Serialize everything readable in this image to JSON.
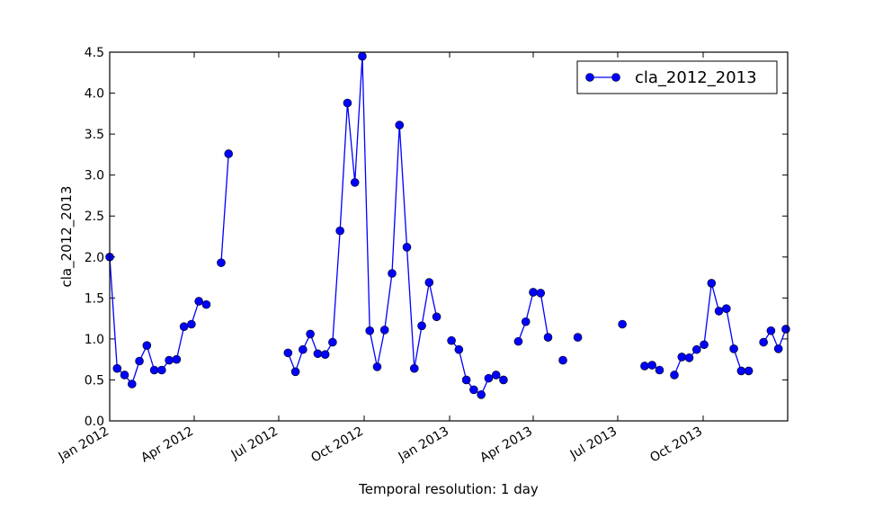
{
  "chart_data": {
    "type": "line",
    "title": "",
    "xlabel": "Temporal resolution: 1 day",
    "ylabel": "cla_2012_2013",
    "ylim": [
      0.0,
      4.5
    ],
    "xlim": [
      "2012-01-01",
      "2013-12-31"
    ],
    "grid": false,
    "legend_position": "top-right",
    "y_ticks": [
      "0.0",
      "0.5",
      "1.0",
      "1.5",
      "2.0",
      "2.5",
      "3.0",
      "3.5",
      "4.0",
      "4.5"
    ],
    "x_ticks": [
      {
        "date": "2012-01-01",
        "label": "Jan 2012"
      },
      {
        "date": "2012-04-01",
        "label": "Apr 2012"
      },
      {
        "date": "2012-07-01",
        "label": "Jul 2012"
      },
      {
        "date": "2012-10-01",
        "label": "Oct 2012"
      },
      {
        "date": "2013-01-01",
        "label": "Jan 2013"
      },
      {
        "date": "2013-04-01",
        "label": "Apr 2013"
      },
      {
        "date": "2013-07-01",
        "label": "Jul 2013"
      },
      {
        "date": "2013-10-01",
        "label": "Oct 2013"
      }
    ],
    "series_color": "#0000ff",
    "series": [
      {
        "name": "cla_2012_2013",
        "points": [
          [
            "2012-01-01",
            2.0
          ],
          [
            "2012-01-09",
            0.64
          ],
          [
            "2012-01-17",
            0.56
          ],
          [
            "2012-01-25",
            0.45
          ],
          [
            "2012-02-02",
            0.73
          ],
          [
            "2012-02-10",
            0.92
          ],
          [
            "2012-02-18",
            0.62
          ],
          [
            "2012-02-26",
            0.62
          ],
          [
            "2012-03-05",
            0.74
          ],
          [
            "2012-03-13",
            0.75
          ],
          [
            "2012-03-21",
            1.15
          ],
          [
            "2012-03-29",
            1.18
          ],
          [
            "2012-04-06",
            1.46
          ],
          [
            "2012-04-14",
            1.42
          ],
          [
            "2012-04-22",
            null
          ],
          [
            "2012-04-30",
            1.93
          ],
          [
            "2012-05-08",
            3.26
          ],
          [
            "2012-05-16",
            null
          ],
          [
            "2012-05-24",
            null
          ],
          [
            "2012-06-01",
            null
          ],
          [
            "2012-06-09",
            null
          ],
          [
            "2012-06-17",
            null
          ],
          [
            "2012-06-25",
            null
          ],
          [
            "2012-07-03",
            null
          ],
          [
            "2012-07-11",
            0.83
          ],
          [
            "2012-07-19",
            0.6
          ],
          [
            "2012-07-27",
            0.87
          ],
          [
            "2012-08-04",
            1.06
          ],
          [
            "2012-08-12",
            0.82
          ],
          [
            "2012-08-20",
            0.81
          ],
          [
            "2012-08-28",
            0.96
          ],
          [
            "2012-09-05",
            2.32
          ],
          [
            "2012-09-13",
            3.88
          ],
          [
            "2012-09-21",
            2.91
          ],
          [
            "2012-09-29",
            4.45
          ],
          [
            "2012-10-07",
            1.1
          ],
          [
            "2012-10-15",
            0.66
          ],
          [
            "2012-10-23",
            1.11
          ],
          [
            "2012-10-31",
            1.8
          ],
          [
            "2012-11-08",
            3.61
          ],
          [
            "2012-11-16",
            2.12
          ],
          [
            "2012-11-24",
            0.64
          ],
          [
            "2012-12-02",
            1.16
          ],
          [
            "2012-12-10",
            1.69
          ],
          [
            "2012-12-18",
            1.27
          ],
          [
            "2012-12-26",
            null
          ],
          [
            "2013-01-03",
            0.98
          ],
          [
            "2013-01-11",
            0.87
          ],
          [
            "2013-01-19",
            0.5
          ],
          [
            "2013-01-27",
            0.38
          ],
          [
            "2013-02-04",
            0.32
          ],
          [
            "2013-02-12",
            0.52
          ],
          [
            "2013-02-20",
            0.56
          ],
          [
            "2013-02-28",
            0.5
          ],
          [
            "2013-03-08",
            null
          ],
          [
            "2013-03-16",
            0.97
          ],
          [
            "2013-03-24",
            1.21
          ],
          [
            "2013-04-01",
            1.57
          ],
          [
            "2013-04-09",
            1.56
          ],
          [
            "2013-04-17",
            1.02
          ],
          [
            "2013-04-25",
            null
          ],
          [
            "2013-05-03",
            0.74
          ],
          [
            "2013-05-11",
            null
          ],
          [
            "2013-05-19",
            1.02
          ],
          [
            "2013-05-27",
            null
          ],
          [
            "2013-06-04",
            null
          ],
          [
            "2013-06-12",
            null
          ],
          [
            "2013-06-20",
            null
          ],
          [
            "2013-06-28",
            null
          ],
          [
            "2013-07-06",
            1.18
          ],
          [
            "2013-07-14",
            null
          ],
          [
            "2013-07-22",
            null
          ],
          [
            "2013-07-30",
            0.67
          ],
          [
            "2013-08-07",
            0.68
          ],
          [
            "2013-08-15",
            0.62
          ],
          [
            "2013-08-23",
            null
          ],
          [
            "2013-08-31",
            0.56
          ],
          [
            "2013-09-08",
            0.78
          ],
          [
            "2013-09-16",
            0.77
          ],
          [
            "2013-09-24",
            0.87
          ],
          [
            "2013-10-02",
            0.93
          ],
          [
            "2013-10-10",
            1.68
          ],
          [
            "2013-10-18",
            1.34
          ],
          [
            "2013-10-26",
            1.37
          ],
          [
            "2013-11-03",
            0.88
          ],
          [
            "2013-11-11",
            0.61
          ],
          [
            "2013-11-19",
            0.61
          ],
          [
            "2013-11-27",
            null
          ],
          [
            "2013-12-05",
            0.96
          ],
          [
            "2013-12-13",
            1.1
          ],
          [
            "2013-12-21",
            0.88
          ],
          [
            "2013-12-29",
            1.12
          ]
        ]
      }
    ]
  }
}
